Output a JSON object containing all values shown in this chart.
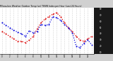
{
  "title": "Milwaukee Weather Outdoor Temp (vs) THSW Index per Hour (Last 24 Hours)",
  "bg_color": "#d0d0d0",
  "plot_bg": "#ffffff",
  "right_panel_color": "#1a1a1a",
  "x_hours": [
    0,
    1,
    2,
    3,
    4,
    5,
    6,
    7,
    8,
    9,
    10,
    11,
    12,
    13,
    14,
    15,
    16,
    17,
    18,
    19,
    20,
    21,
    22,
    23
  ],
  "temp_y": [
    58,
    54,
    50,
    46,
    43,
    40,
    36,
    45,
    42,
    44,
    55,
    54,
    55,
    68,
    66,
    62,
    55,
    50,
    42,
    20,
    18,
    25,
    30,
    22
  ],
  "thsw_y": [
    44,
    40,
    36,
    32,
    28,
    28,
    26,
    30,
    36,
    48,
    58,
    64,
    68,
    72,
    74,
    68,
    58,
    50,
    44,
    36,
    30,
    28,
    32,
    36
  ],
  "temp_color": "#0000dd",
  "thsw_color": "#dd0000",
  "grid_color": "#999999",
  "marker_color": "#000000",
  "ylabel_right_values": [
    80,
    70,
    60,
    50,
    40,
    30,
    20,
    10
  ],
  "ylim": [
    8,
    82
  ],
  "xlim_min": -0.5,
  "xlim_max": 23.5,
  "xtick_labels": [
    "0",
    "",
    "2",
    "",
    "4",
    "",
    "6",
    "",
    "8",
    "",
    "10",
    "",
    "12",
    "",
    "14",
    "",
    "16",
    "",
    "18",
    "",
    "20",
    "",
    "22",
    "",
    ""
  ]
}
